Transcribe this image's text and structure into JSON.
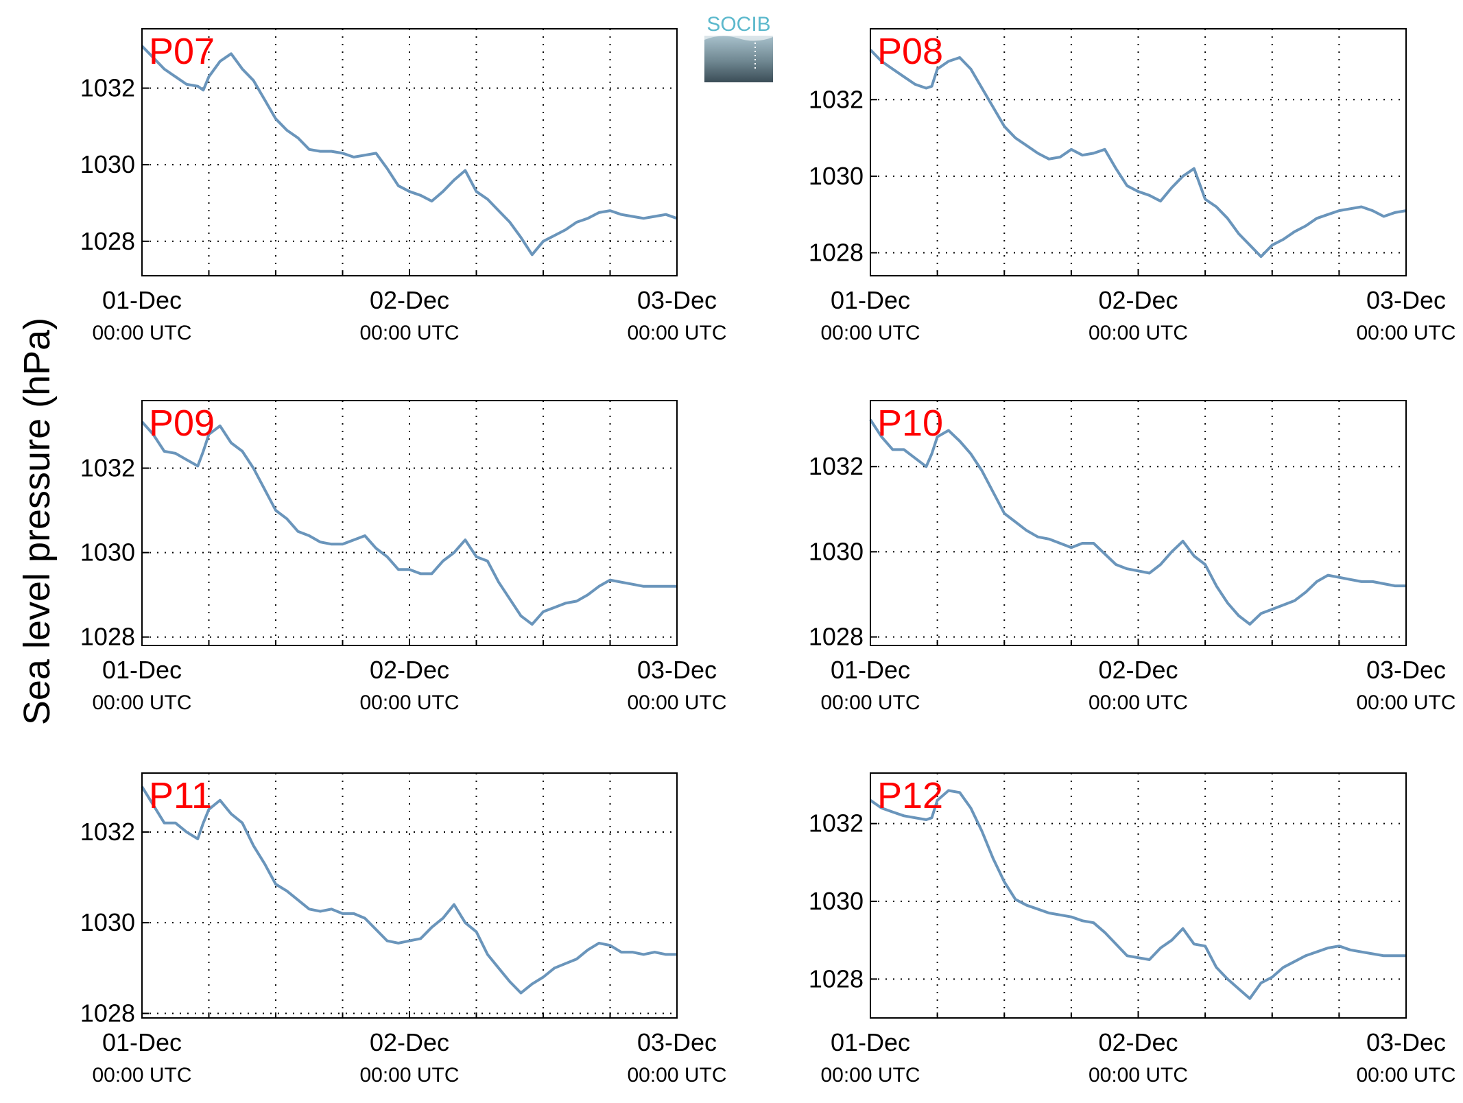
{
  "figure": {
    "ylabel": "Sea level pressure (hPa)",
    "logo_text": "SOCIB",
    "colors": {
      "line": "#6a95bb",
      "station_label": "#ff0000",
      "axis": "#000000",
      "grid": "#000000"
    }
  },
  "chart_data": [
    {
      "type": "line",
      "label": "P07",
      "xlabels": [
        [
          "01-Dec",
          "00:00 UTC"
        ],
        [
          "02-Dec",
          "00:00 UTC"
        ],
        [
          "03-Dec",
          "00:00 UTC"
        ]
      ],
      "xlim": [
        0,
        48
      ],
      "ylim": [
        1027.1,
        1033.55
      ],
      "yticks": [
        1028,
        1030,
        1032
      ],
      "grid": true,
      "x": [
        0,
        1,
        2,
        3,
        4,
        5,
        5.5,
        6,
        7,
        8,
        9,
        10,
        11,
        12,
        13,
        14,
        15,
        16,
        17,
        18,
        19,
        20,
        21,
        22,
        23,
        24,
        25,
        26,
        27,
        28,
        29,
        30,
        31,
        32,
        33,
        34,
        35,
        36,
        37,
        38,
        39,
        39.5,
        40,
        41,
        42,
        43,
        44,
        45,
        46,
        47,
        48
      ],
      "y": [
        1033.1,
        1032.8,
        1032.5,
        1032.3,
        1032.1,
        1032.05,
        1031.95,
        1032.3,
        1032.7,
        1032.9,
        1032.5,
        1032.2,
        1031.7,
        1031.2,
        1030.9,
        1030.7,
        1030.4,
        1030.35,
        1030.35,
        1030.3,
        1030.2,
        1030.25,
        1030.3,
        1029.9,
        1029.45,
        1029.3,
        1029.2,
        1029.05,
        1029.3,
        1029.6,
        1029.85,
        1029.3,
        1029.1,
        1028.8,
        1028.5,
        1028.1,
        1027.65,
        1028.0,
        1028.15,
        1028.3,
        1028.5,
        1028.55,
        1028.6,
        1028.75,
        1028.8,
        1028.7,
        1028.65,
        1028.6,
        1028.65,
        1028.7,
        1028.6
      ]
    },
    {
      "type": "line",
      "label": "P08",
      "xlabels": [
        [
          "01-Dec",
          "00:00 UTC"
        ],
        [
          "02-Dec",
          "00:00 UTC"
        ],
        [
          "03-Dec",
          "00:00 UTC"
        ]
      ],
      "xlim": [
        0,
        48
      ],
      "ylim": [
        1027.4,
        1033.85
      ],
      "yticks": [
        1028,
        1030,
        1032
      ],
      "grid": true,
      "x": [
        0,
        1,
        2,
        3,
        4,
        5,
        5.5,
        6,
        7,
        8,
        9,
        10,
        11,
        12,
        13,
        14,
        15,
        16,
        17,
        18,
        19,
        20,
        21,
        22,
        23,
        24,
        25,
        26,
        27,
        28,
        29,
        30,
        31,
        32,
        33,
        34,
        35,
        36,
        37,
        38,
        39,
        40,
        41,
        42,
        43,
        44,
        45,
        46,
        47,
        48
      ],
      "y": [
        1033.3,
        1033.0,
        1032.8,
        1032.6,
        1032.4,
        1032.3,
        1032.35,
        1032.8,
        1033.0,
        1033.1,
        1032.8,
        1032.3,
        1031.8,
        1031.3,
        1031.0,
        1030.8,
        1030.6,
        1030.45,
        1030.5,
        1030.7,
        1030.55,
        1030.6,
        1030.7,
        1030.2,
        1029.75,
        1029.6,
        1029.5,
        1029.35,
        1029.7,
        1030.0,
        1030.2,
        1029.4,
        1029.2,
        1028.9,
        1028.5,
        1028.2,
        1027.9,
        1028.2,
        1028.35,
        1028.55,
        1028.7,
        1028.9,
        1029.0,
        1029.1,
        1029.15,
        1029.2,
        1029.1,
        1028.95,
        1029.05,
        1029.1
      ]
    },
    {
      "type": "line",
      "label": "P09",
      "xlabels": [
        [
          "01-Dec",
          "00:00 UTC"
        ],
        [
          "02-Dec",
          "00:00 UTC"
        ],
        [
          "03-Dec",
          "00:00 UTC"
        ]
      ],
      "xlim": [
        0,
        48
      ],
      "ylim": [
        1027.8,
        1033.6
      ],
      "yticks": [
        1028,
        1030,
        1032
      ],
      "grid": true,
      "x": [
        0,
        1,
        2,
        3,
        4,
        5,
        5.5,
        6,
        7,
        8,
        9,
        10,
        11,
        12,
        13,
        14,
        15,
        16,
        17,
        18,
        19,
        20,
        21,
        22,
        23,
        24,
        25,
        26,
        27,
        28,
        29,
        30,
        31,
        32,
        33,
        34,
        35,
        36,
        37,
        38,
        39,
        40,
        41,
        42,
        43,
        44,
        45,
        46,
        47,
        48
      ],
      "y": [
        1033.1,
        1032.8,
        1032.4,
        1032.35,
        1032.2,
        1032.05,
        1032.4,
        1032.8,
        1033.0,
        1032.6,
        1032.4,
        1032.0,
        1031.5,
        1031.0,
        1030.8,
        1030.5,
        1030.4,
        1030.25,
        1030.2,
        1030.2,
        1030.3,
        1030.4,
        1030.1,
        1029.9,
        1029.6,
        1029.6,
        1029.5,
        1029.5,
        1029.8,
        1030.0,
        1030.3,
        1029.9,
        1029.8,
        1029.3,
        1028.9,
        1028.5,
        1028.3,
        1028.6,
        1028.7,
        1028.8,
        1028.85,
        1029.0,
        1029.2,
        1029.35,
        1029.3,
        1029.25,
        1029.2,
        1029.2,
        1029.2,
        1029.2
      ]
    },
    {
      "type": "line",
      "label": "P10",
      "xlabels": [
        [
          "01-Dec",
          "00:00 UTC"
        ],
        [
          "02-Dec",
          "00:00 UTC"
        ],
        [
          "03-Dec",
          "00:00 UTC"
        ]
      ],
      "xlim": [
        0,
        48
      ],
      "ylim": [
        1027.8,
        1033.55
      ],
      "yticks": [
        1028,
        1030,
        1032
      ],
      "grid": true,
      "x": [
        0,
        1,
        2,
        3,
        4,
        5,
        5.5,
        6,
        7,
        8,
        9,
        10,
        11,
        12,
        13,
        14,
        15,
        16,
        17,
        18,
        19,
        20,
        21,
        22,
        23,
        24,
        25,
        26,
        27,
        28,
        29,
        30,
        31,
        32,
        33,
        34,
        35,
        36,
        37,
        38,
        39,
        40,
        41,
        42,
        43,
        44,
        45,
        46,
        47,
        48
      ],
      "y": [
        1033.1,
        1032.7,
        1032.4,
        1032.4,
        1032.2,
        1032.0,
        1032.3,
        1032.7,
        1032.85,
        1032.6,
        1032.3,
        1031.9,
        1031.4,
        1030.9,
        1030.7,
        1030.5,
        1030.35,
        1030.3,
        1030.2,
        1030.1,
        1030.2,
        1030.2,
        1029.95,
        1029.7,
        1029.6,
        1029.55,
        1029.5,
        1029.7,
        1030.0,
        1030.25,
        1029.9,
        1029.7,
        1029.2,
        1028.8,
        1028.5,
        1028.3,
        1028.55,
        1028.65,
        1028.75,
        1028.85,
        1029.05,
        1029.3,
        1029.45,
        1029.4,
        1029.35,
        1029.3,
        1029.3,
        1029.25,
        1029.2,
        1029.2
      ]
    },
    {
      "type": "line",
      "label": "P11",
      "xlabels": [
        [
          "01-Dec",
          "00:00 UTC"
        ],
        [
          "02-Dec",
          "00:00 UTC"
        ],
        [
          "03-Dec",
          "00:00 UTC"
        ]
      ],
      "xlim": [
        0,
        48
      ],
      "ylim": [
        1027.9,
        1033.3
      ],
      "yticks": [
        1028,
        1030,
        1032
      ],
      "grid": true,
      "x": [
        0,
        1,
        2,
        3,
        4,
        5,
        5.5,
        6,
        7,
        8,
        9,
        10,
        11,
        12,
        13,
        14,
        15,
        16,
        17,
        18,
        19,
        20,
        21,
        22,
        23,
        24,
        25,
        26,
        27,
        28,
        29,
        30,
        31,
        32,
        33,
        34,
        35,
        36,
        37,
        38,
        39,
        40,
        41,
        42,
        43,
        44,
        45,
        46,
        47,
        48
      ],
      "y": [
        1033.0,
        1032.6,
        1032.2,
        1032.2,
        1032.0,
        1031.85,
        1032.2,
        1032.5,
        1032.7,
        1032.4,
        1032.2,
        1031.7,
        1031.3,
        1030.85,
        1030.7,
        1030.5,
        1030.3,
        1030.25,
        1030.3,
        1030.2,
        1030.2,
        1030.1,
        1029.85,
        1029.6,
        1029.55,
        1029.6,
        1029.65,
        1029.9,
        1030.1,
        1030.4,
        1030.0,
        1029.8,
        1029.3,
        1029.0,
        1028.7,
        1028.45,
        1028.65,
        1028.8,
        1029.0,
        1029.1,
        1029.2,
        1029.4,
        1029.55,
        1029.5,
        1029.35,
        1029.35,
        1029.3,
        1029.35,
        1029.3,
        1029.3
      ]
    },
    {
      "type": "line",
      "label": "P12",
      "xlabels": [
        [
          "01-Dec",
          "00:00 UTC"
        ],
        [
          "02-Dec",
          "00:00 UTC"
        ],
        [
          "03-Dec",
          "00:00 UTC"
        ]
      ],
      "xlim": [
        0,
        48
      ],
      "ylim": [
        1027.0,
        1033.3
      ],
      "yticks": [
        1028,
        1030,
        1032
      ],
      "grid": true,
      "x": [
        0,
        1,
        2,
        3,
        4,
        5,
        5.5,
        6,
        7,
        8,
        9,
        10,
        11,
        12,
        13,
        14,
        15,
        16,
        17,
        18,
        19,
        20,
        21,
        22,
        23,
        24,
        25,
        26,
        27,
        28,
        29,
        30,
        31,
        32,
        33,
        34,
        35,
        36,
        37,
        38,
        39,
        40,
        41,
        42,
        43,
        44,
        45,
        46,
        47,
        48
      ],
      "y": [
        1032.6,
        1032.4,
        1032.3,
        1032.2,
        1032.15,
        1032.1,
        1032.15,
        1032.6,
        1032.85,
        1032.8,
        1032.4,
        1031.8,
        1031.1,
        1030.5,
        1030.05,
        1029.9,
        1029.8,
        1029.7,
        1029.65,
        1029.6,
        1029.5,
        1029.45,
        1029.2,
        1028.9,
        1028.6,
        1028.55,
        1028.5,
        1028.8,
        1029.0,
        1029.3,
        1028.9,
        1028.85,
        1028.3,
        1028.0,
        1027.75,
        1027.5,
        1027.9,
        1028.05,
        1028.3,
        1028.45,
        1028.6,
        1028.7,
        1028.8,
        1028.85,
        1028.75,
        1028.7,
        1028.65,
        1028.6,
        1028.6,
        1028.6
      ]
    }
  ]
}
